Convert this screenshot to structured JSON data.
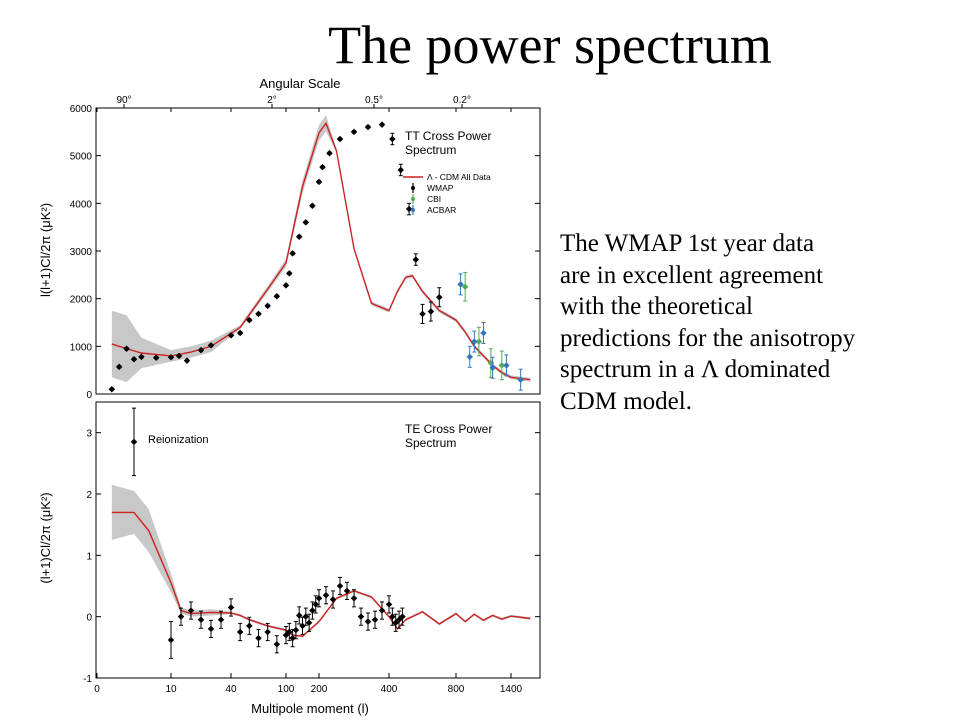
{
  "slide": {
    "title": "The power spectrum",
    "caption_lines": [
      "The WMAP 1st year data",
      "are in excellent agreement",
      "with the theoretical",
      "predictions for the anisotropy",
      "spectrum in a Λ dominated",
      "CDM model."
    ]
  },
  "chart_data": [
    {
      "type": "line",
      "title": "TT Cross Power Spectrum",
      "title_lines": [
        "TT Cross Power",
        "Spectrum"
      ],
      "top_axis_label": "Angular Scale",
      "top_ticks": [
        "90°",
        "2°",
        "0.5°",
        "0.2°"
      ],
      "ylabel": "l(l+1)Cl/2π (μK²)",
      "xlabel": "",
      "ylim": [
        0,
        6000
      ],
      "yticks": [
        0,
        1000,
        2000,
        3000,
        4000,
        5000,
        6000
      ],
      "x_scale": "mixed log-linear",
      "legend": [
        "Λ - CDM All Data",
        "WMAP",
        "CBI",
        "ACBAR"
      ],
      "legend_position": "right",
      "colors": {
        "model": "#cc2222",
        "band": "#c8c8c8",
        "WMAP": "#000000",
        "CBI": "#55aa55",
        "ACBAR": "#3377bb"
      },
      "series": [
        {
          "name": "Λ - CDM All Data",
          "x": [
            2,
            4,
            6,
            10,
            20,
            30,
            50,
            80,
            100,
            150,
            200,
            220,
            250,
            300,
            350,
            400,
            450,
            500,
            540,
            600,
            700,
            800,
            900,
            1000,
            1100,
            1200,
            1300,
            1400,
            1500
          ],
          "values": [
            1050,
            950,
            860,
            800,
            880,
            1000,
            1400,
            2200,
            2750,
            4350,
            5480,
            5680,
            5100,
            3050,
            1900,
            1750,
            2150,
            2450,
            2480,
            2150,
            1750,
            1550,
            1300,
            1000,
            800,
            600,
            450,
            350,
            300
          ]
        },
        {
          "name": "WMAP",
          "x": [
            2,
            3,
            4,
            5,
            6,
            8,
            10,
            14,
            18,
            25,
            30,
            40,
            50,
            60,
            70,
            80,
            90,
            100,
            110,
            120,
            140,
            160,
            180,
            200,
            210,
            230,
            260,
            300,
            340,
            380,
            420,
            470,
            520,
            560,
            600,
            650,
            700
          ],
          "values": [
            100,
            570,
            950,
            730,
            780,
            760,
            770,
            800,
            700,
            920,
            1020,
            1230,
            1280,
            1550,
            1680,
            1850,
            2050,
            2280,
            2530,
            2950,
            3300,
            3600,
            3950,
            4450,
            4760,
            5050,
            5350,
            5500,
            5600,
            5650,
            5350,
            4700,
            3880,
            2820,
            1680,
            1730,
            2030
          ]
        },
        {
          "name": "CBI",
          "x": [
            900,
            1050,
            1180,
            1300
          ],
          "values": [
            2250,
            1100,
            650,
            600
          ]
        },
        {
          "name": "ACBAR",
          "x": [
            850,
            950,
            1000,
            1100,
            1200,
            1350,
            1450
          ],
          "values": [
            2300,
            780,
            1100,
            1280,
            550,
            600,
            300
          ]
        }
      ]
    },
    {
      "type": "line",
      "title": "TE Cross Power Spectrum",
      "title_lines": [
        "TE Cross Power",
        "Spectrum"
      ],
      "annotation": "Reionization",
      "ylabel": "(l+1)Cl/2π (μK²)",
      "xlabel": "Multipole moment (l)",
      "ylim": [
        -1,
        3.5
      ],
      "yticks": [
        -1,
        0,
        1,
        2,
        3
      ],
      "xticks": [
        "0",
        "10",
        "40",
        "100",
        "200",
        "400",
        "800",
        "1400"
      ],
      "x_scale": "mixed log-linear",
      "colors": {
        "model": "#cc2222",
        "band": "#c8c8c8",
        "data": "#000000"
      },
      "series": [
        {
          "name": "Λ - CDM All Data",
          "x": [
            2,
            5,
            7,
            10,
            15,
            20,
            30,
            40,
            50,
            60,
            80,
            100,
            120,
            150,
            200,
            250,
            300,
            350,
            400,
            450,
            500,
            600,
            700,
            800,
            900,
            1000,
            1100,
            1200,
            1300,
            1400,
            1500
          ],
          "values": [
            1.7,
            1.7,
            1.4,
            0.55,
            0.1,
            0.05,
            0.07,
            0.06,
            0.02,
            -0.05,
            -0.15,
            -0.22,
            -0.3,
            -0.32,
            -0.08,
            0.3,
            0.42,
            0.32,
            0.0,
            -0.2,
            -0.05,
            0.08,
            -0.12,
            0.05,
            -0.08,
            0.04,
            -0.06,
            0.02,
            -0.04,
            0.01,
            -0.03
          ]
        },
        {
          "name": "WMAP",
          "x": [
            5,
            10,
            15,
            20,
            25,
            30,
            35,
            40,
            50,
            60,
            70,
            80,
            90,
            100,
            110,
            120,
            130,
            140,
            150,
            160,
            170,
            180,
            190,
            200,
            220,
            240,
            260,
            280,
            300,
            320,
            340,
            360,
            380,
            400,
            420,
            440,
            460,
            480
          ],
          "values": [
            2.85,
            -0.38,
            0.0,
            0.1,
            -0.05,
            -0.2,
            -0.05,
            0.15,
            -0.25,
            -0.15,
            -0.35,
            -0.25,
            -0.45,
            -0.3,
            -0.25,
            -0.35,
            -0.22,
            0.02,
            -0.15,
            0.0,
            -0.1,
            0.1,
            0.2,
            0.3,
            0.35,
            0.28,
            0.5,
            0.42,
            0.3,
            0.0,
            -0.08,
            -0.05,
            0.1,
            0.2,
            0.0,
            -0.1,
            -0.05,
            0.0
          ]
        }
      ]
    }
  ]
}
